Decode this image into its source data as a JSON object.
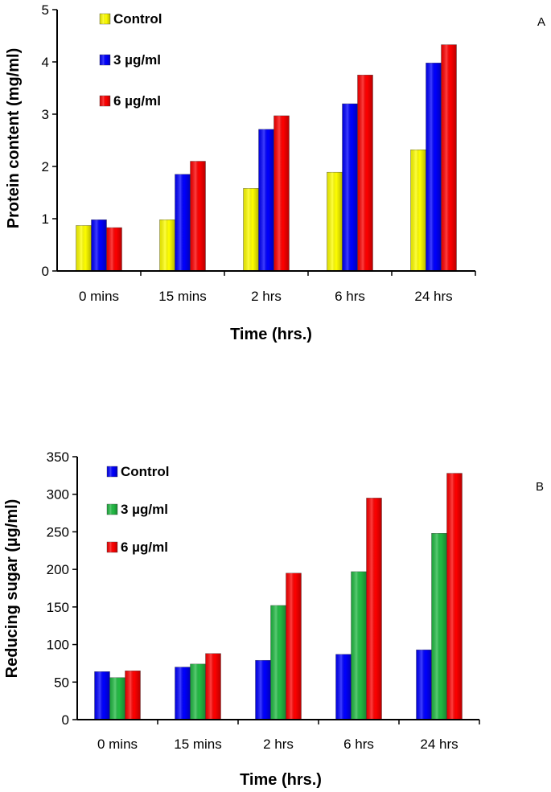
{
  "chart_data": [
    {
      "type": "bar",
      "panel_label": "A",
      "categories": [
        "0 mins",
        "15 mins",
        "2 hrs",
        "6 hrs",
        "24 hrs"
      ],
      "series": [
        {
          "name": "Control",
          "color": "#ffff00",
          "values": [
            0.87,
            0.98,
            1.58,
            1.89,
            2.32
          ]
        },
        {
          "name": "3 µg/ml",
          "color": "#0000ff",
          "values": [
            0.98,
            1.85,
            2.71,
            3.2,
            3.98
          ]
        },
        {
          "name": "6 µg/ml",
          "color": "#ff0000",
          "values": [
            0.83,
            2.1,
            2.97,
            3.75,
            4.33
          ]
        }
      ],
      "xlabel": "Time (hrs.)",
      "ylabel": "Protein content (mg/ml)",
      "ylim": [
        0,
        5
      ],
      "yticks": [
        0,
        1,
        2,
        3,
        4,
        5
      ],
      "grid": false,
      "legend": "top-left"
    },
    {
      "type": "bar",
      "panel_label": "B",
      "categories": [
        "0 mins",
        "15 mins",
        "2 hrs",
        "6 hrs",
        "24 hrs"
      ],
      "series": [
        {
          "name": "Control",
          "color": "#0000ff",
          "values": [
            64,
            70,
            79,
            87,
            93
          ]
        },
        {
          "name": "3 µg/ml",
          "color": "#22bb44",
          "values": [
            56,
            74,
            152,
            197,
            248
          ]
        },
        {
          "name": "6 µg/ml",
          "color": "#ff0000",
          "values": [
            65,
            88,
            195,
            295,
            328
          ]
        }
      ],
      "xlabel": "Time (hrs.)",
      "ylabel": "Reducing sugar (µg/ml)",
      "ylim": [
        0,
        350
      ],
      "yticks": [
        0,
        50,
        100,
        150,
        200,
        250,
        300,
        350
      ],
      "grid": false,
      "legend": "top-left"
    }
  ]
}
